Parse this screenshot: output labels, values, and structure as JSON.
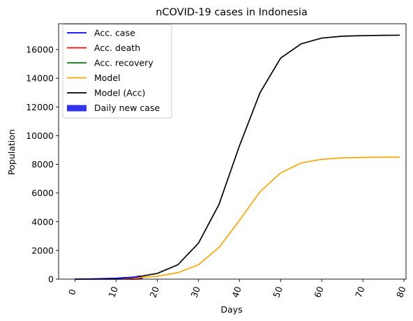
{
  "chart_data": {
    "type": "line",
    "title": "nCOVID-19 cases in Indonesia",
    "xlabel": "Days",
    "ylabel": "Population",
    "xlim": [
      -4,
      80.5
    ],
    "ylim": [
      0,
      17800
    ],
    "xticks": [
      0,
      10,
      20,
      30,
      40,
      50,
      60,
      70,
      80
    ],
    "xtick_labels": [
      "0",
      "10",
      "20",
      "30",
      "40",
      "50",
      "60",
      "70",
      "80"
    ],
    "xtick_rotation": -70,
    "yticks": [
      0,
      2000,
      4000,
      6000,
      8000,
      10000,
      12000,
      14000,
      16000
    ],
    "ytick_labels": [
      "0",
      "2000",
      "4000",
      "6000",
      "8000",
      "10000",
      "12000",
      "14000",
      "16000"
    ],
    "grid": false,
    "legend_position": "top-left",
    "series": [
      {
        "name": "Acc. case",
        "color": "#0000ff",
        "kind": "line",
        "x": [
          0,
          2,
          4,
          6,
          8,
          10,
          12,
          14,
          16
        ],
        "y": [
          2,
          2,
          4,
          19,
          27,
          34,
          96,
          117,
          227
        ]
      },
      {
        "name": "Acc. death",
        "color": "#ff0000",
        "kind": "line",
        "x": [
          0,
          2,
          4,
          6,
          8,
          10,
          12,
          14,
          16
        ],
        "y": [
          0,
          0,
          0,
          0,
          0,
          2,
          5,
          5,
          19
        ]
      },
      {
        "name": "Acc. recovery",
        "color": "#008000",
        "kind": "line",
        "x": [
          0,
          2,
          4,
          6,
          8,
          10,
          12,
          14,
          16
        ],
        "y": [
          0,
          0,
          0,
          0,
          0,
          2,
          8,
          8,
          11
        ]
      },
      {
        "name": "Model",
        "color": "#ffa500",
        "kind": "line",
        "x": [
          0,
          5,
          10,
          15,
          20,
          25,
          30,
          35,
          40,
          45,
          50,
          55,
          60,
          65,
          70,
          75,
          79
        ],
        "y": [
          5,
          18,
          45,
          100,
          200,
          450,
          1000,
          2200,
          4100,
          6100,
          7400,
          8100,
          8350,
          8450,
          8480,
          8500,
          8500
        ]
      },
      {
        "name": "Model (Acc)",
        "color": "#000000",
        "kind": "line",
        "x": [
          0,
          5,
          10,
          15,
          20,
          25,
          30,
          35,
          40,
          45,
          50,
          55,
          60,
          65,
          70,
          75,
          79
        ],
        "y": [
          5,
          20,
          60,
          150,
          400,
          1000,
          2500,
          5200,
          9300,
          13000,
          15400,
          16400,
          16800,
          16930,
          16970,
          16990,
          17000
        ]
      },
      {
        "name": "Daily new case",
        "color": "#3333ee",
        "kind": "bar",
        "x": [
          0,
          2,
          4,
          6,
          8,
          10,
          12,
          14,
          16
        ],
        "y": [
          2,
          0,
          2,
          15,
          8,
          7,
          62,
          21,
          110
        ]
      }
    ]
  }
}
